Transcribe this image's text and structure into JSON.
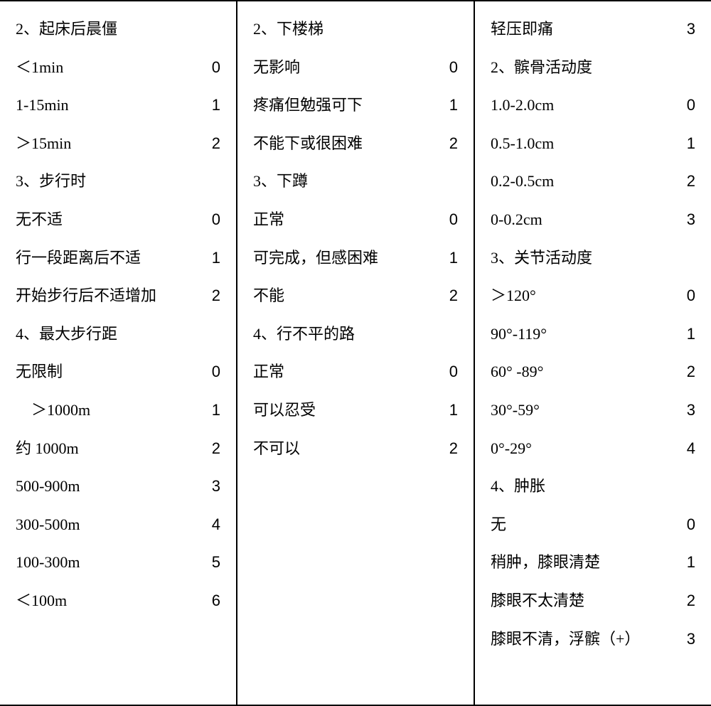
{
  "columns": [
    {
      "rows": [
        {
          "label": "2、起床后晨僵",
          "score": null
        },
        {
          "label": "＜1min",
          "score": "0"
        },
        {
          "label": "1-15min",
          "score": "1"
        },
        {
          "label": "＞15min",
          "score": "2"
        },
        {
          "label": "3、步行时",
          "score": null
        },
        {
          "label": "无不适",
          "score": "0"
        },
        {
          "label": "行一段距离后不适",
          "score": "1"
        },
        {
          "label": "开始步行后不适增加",
          "score": "2"
        },
        {
          "label": "4、最大步行距",
          "score": null
        },
        {
          "label": "无限制",
          "score": "0"
        },
        {
          "label": "　＞1000m",
          "score": "1"
        },
        {
          "label": "约 1000m",
          "score": "2"
        },
        {
          "label": "500-900m",
          "score": "3"
        },
        {
          "label": "300-500m",
          "score": "4"
        },
        {
          "label": "100-300m",
          "score": "5"
        },
        {
          "label": "＜100m",
          "score": "6"
        }
      ]
    },
    {
      "rows": [
        {
          "label": "2、下楼梯",
          "score": null
        },
        {
          "label": "无影响",
          "score": "0"
        },
        {
          "label": "疼痛但勉强可下",
          "score": "1"
        },
        {
          "label": "不能下或很困难",
          "score": "2"
        },
        {
          "label": "3、下蹲",
          "score": null
        },
        {
          "label": "正常",
          "score": "0"
        },
        {
          "label": "可完成，但感困难",
          "score": "1"
        },
        {
          "label": "不能",
          "score": "2"
        },
        {
          "label": "4、行不平的路",
          "score": null
        },
        {
          "label": "正常",
          "score": "0"
        },
        {
          "label": "可以忍受",
          "score": "1"
        },
        {
          "label": "不可以",
          "score": "2"
        },
        {
          "label": "",
          "score": null
        },
        {
          "label": "",
          "score": null
        },
        {
          "label": "",
          "score": null
        },
        {
          "label": "",
          "score": null
        },
        {
          "label": "",
          "score": null
        },
        {
          "label": "",
          "score": null
        }
      ]
    },
    {
      "rows": [
        {
          "label": "轻压即痛",
          "score": "3"
        },
        {
          "label": "2、髌骨活动度",
          "score": null
        },
        {
          "label": "1.0-2.0cm",
          "score": "0"
        },
        {
          "label": "0.5-1.0cm",
          "score": "1"
        },
        {
          "label": "0.2-0.5cm",
          "score": "2"
        },
        {
          "label": "0-0.2cm",
          "score": "3"
        },
        {
          "label": "3、关节活动度",
          "score": null
        },
        {
          "label": "＞120°",
          "score": "0"
        },
        {
          "label": "90°-119°",
          "score": "1"
        },
        {
          "label": "60° -89°",
          "score": "2"
        },
        {
          "label": "30°-59°",
          "score": "3"
        },
        {
          "label": "0°-29°",
          "score": "4"
        },
        {
          "label": "4、肿胀",
          "score": null
        },
        {
          "label": "无",
          "score": "0"
        },
        {
          "label": "稍肿，膝眼清楚",
          "score": "1"
        },
        {
          "label": "膝眼不太清楚",
          "score": "2"
        },
        {
          "label": "膝眼不清，浮髌（+）",
          "score": "3"
        }
      ]
    }
  ]
}
